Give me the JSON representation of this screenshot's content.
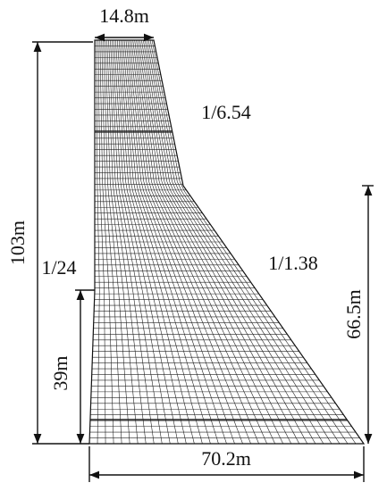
{
  "labels": {
    "crest_width": "14.8m",
    "upper_slope": "1/6.54",
    "height": "103m",
    "upstream_slope": "1/24",
    "lower_slope": "1/1.38",
    "lower_height": "66.5m",
    "upstream_height": "39m",
    "base_width": "70.2m"
  }
}
